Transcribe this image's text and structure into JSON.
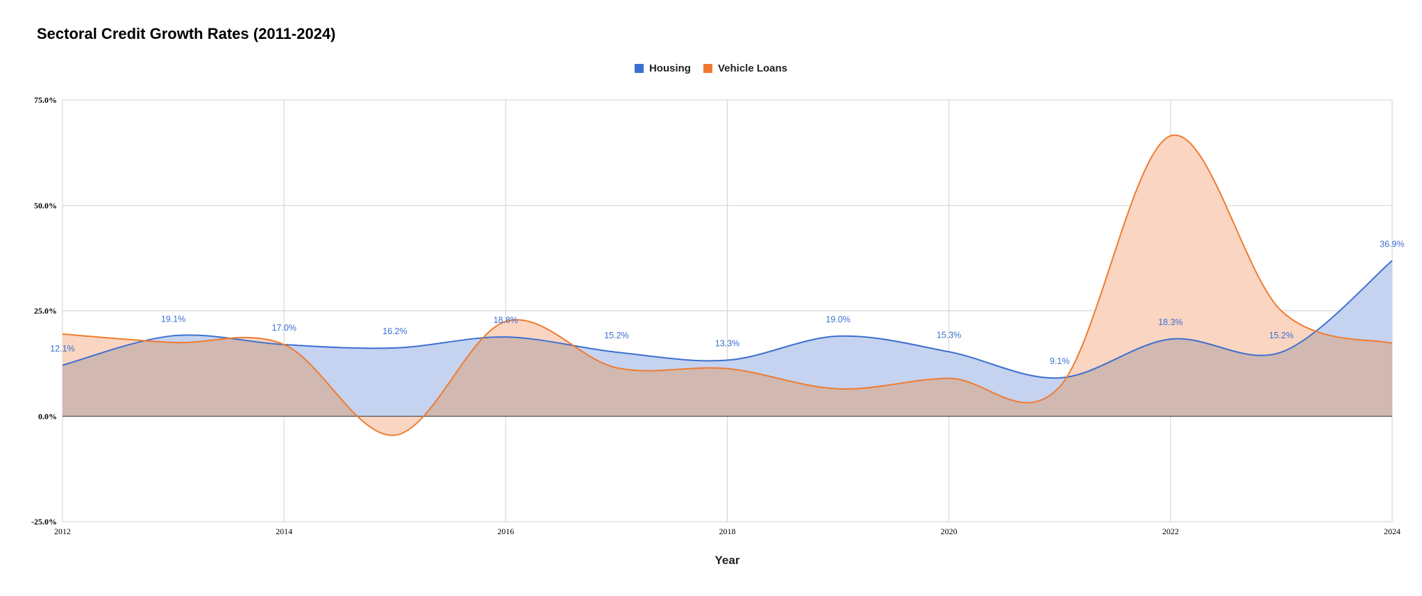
{
  "chart_data": {
    "type": "area",
    "title": "Sectoral Credit Growth Rates (2011-2024)",
    "xlabel": "Year",
    "ylabel": "",
    "x": [
      2012,
      2013,
      2014,
      2015,
      2016,
      2017,
      2018,
      2019,
      2020,
      2021,
      2022,
      2023,
      2024
    ],
    "xticks": [
      2012,
      2014,
      2016,
      2018,
      2020,
      2022,
      2024
    ],
    "xlim": [
      2012,
      2024
    ],
    "ylim": [
      -25,
      75
    ],
    "yticks": [
      "-25.0%",
      "0.0%",
      "25.0%",
      "50.0%",
      "75.0%"
    ],
    "ytick_values": [
      -25,
      0,
      25,
      50,
      75
    ],
    "grid": true,
    "legend_position": "top-center",
    "series": [
      {
        "name": "Housing",
        "color": "#3c6fd0",
        "fill": "#c5d3f0",
        "values": [
          12.1,
          19.1,
          17.0,
          16.2,
          18.8,
          15.2,
          13.3,
          19.0,
          15.3,
          9.1,
          18.3,
          15.2,
          36.9
        ],
        "labels": [
          "12.1%",
          "19.1%",
          "17.0%",
          "16.2%",
          "18.8%",
          "15.2%",
          "13.3%",
          "19.0%",
          "15.3%",
          "9.1%",
          "18.3%",
          "15.2%",
          "36.9%"
        ]
      },
      {
        "name": "Vehicle Loans",
        "color": "#ef7b30",
        "fill": "#f9d5c2",
        "values": [
          19.5,
          17.5,
          17.0,
          -4.5,
          22.5,
          11.5,
          11.3,
          6.5,
          9.0,
          7.0,
          66.5,
          25.0,
          17.3
        ]
      }
    ],
    "overlap_fill": "#d1b8b0"
  }
}
